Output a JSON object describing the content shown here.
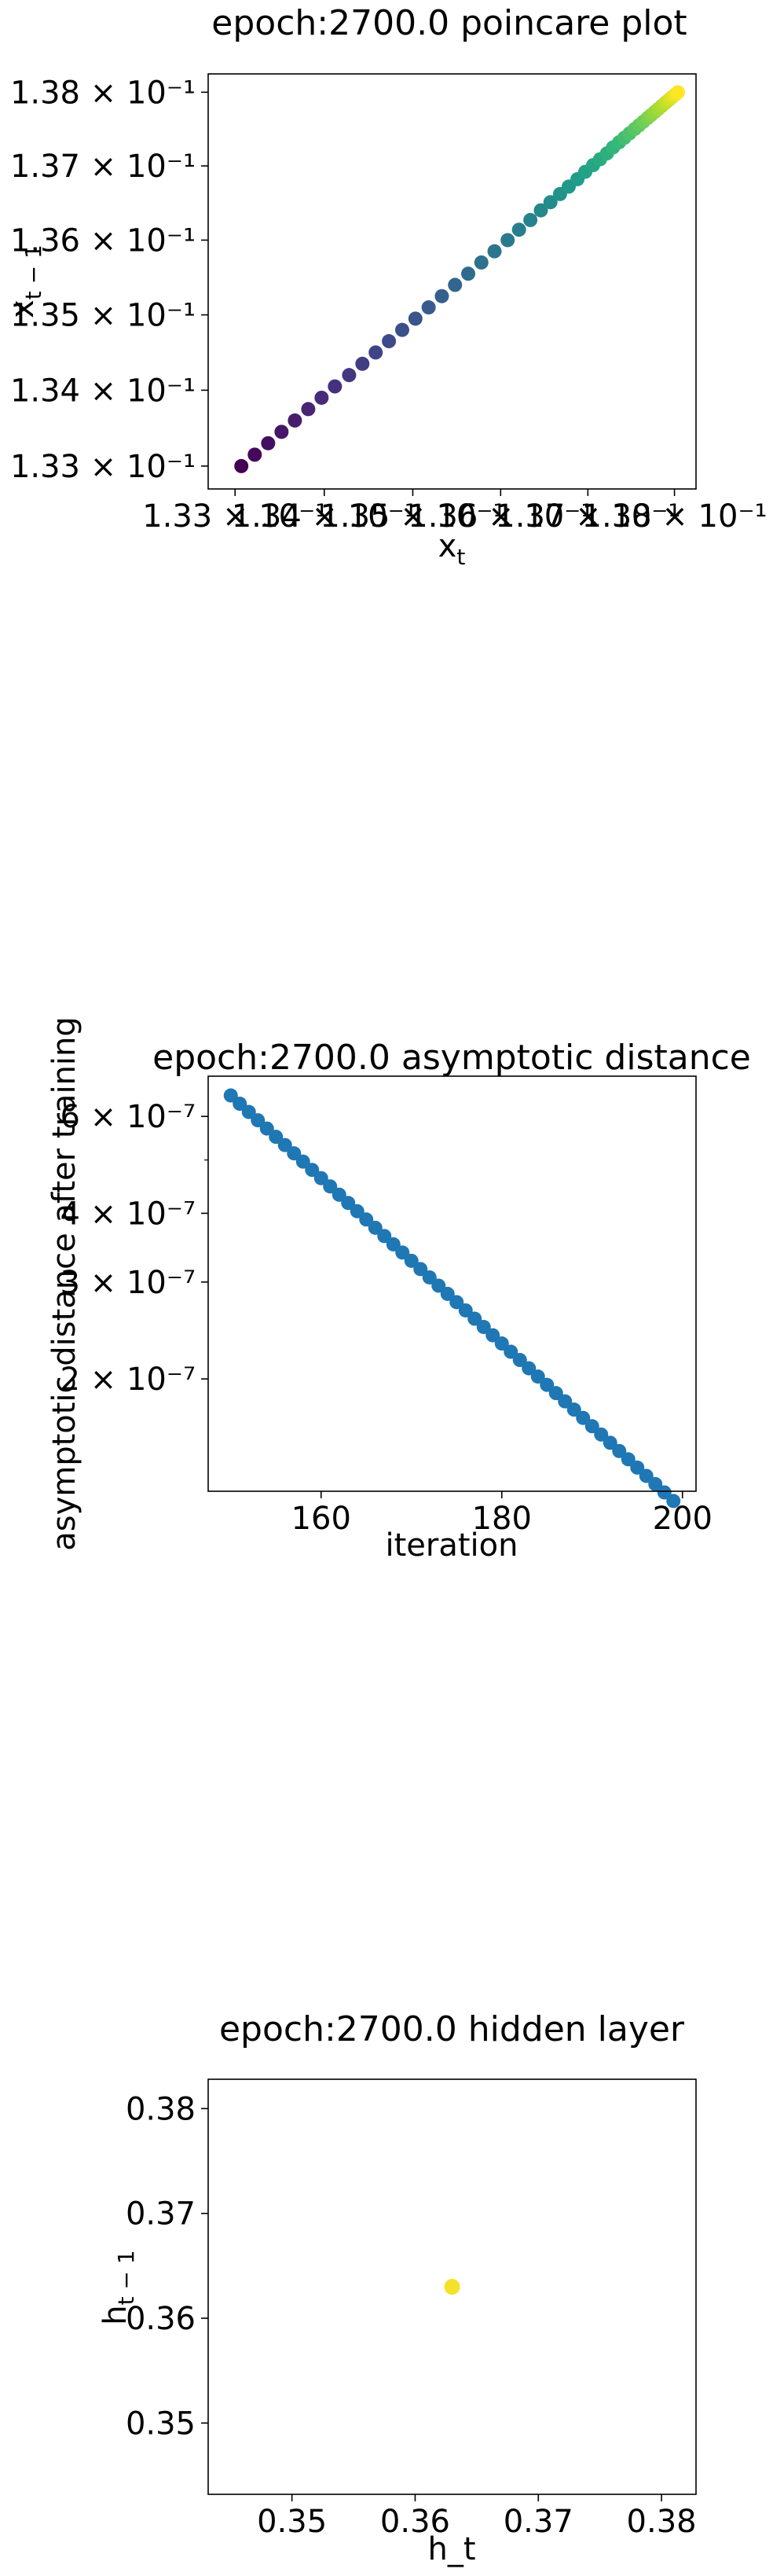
{
  "chart_data": [
    {
      "type": "scatter",
      "title": "epoch:2700.0 poincare plot",
      "xlabel_base": "x",
      "xlabel_sub": "t",
      "ylabel_base": "x",
      "ylabel_sub": "t − 1",
      "x_scale": "log",
      "y_scale": "log",
      "xlim": [
        0.1327,
        0.13825
      ],
      "ylim": [
        0.1327,
        0.13825
      ],
      "x_ticks": [
        0.133,
        0.134,
        0.135,
        0.136,
        0.137,
        0.138
      ],
      "x_tick_labels": [
        "1.33 × 10⁻¹",
        "1.34 × 10⁻¹",
        "1.35 × 10⁻¹",
        "1.36 × 10⁻¹",
        "1.37 × 10⁻¹",
        "1.38 × 10⁻¹"
      ],
      "y_ticks": [
        0.133,
        0.134,
        0.135,
        0.136,
        0.137,
        0.138
      ],
      "y_tick_labels": [
        "1.33 × 10⁻¹",
        "1.34 × 10⁻¹",
        "1.35 × 10⁻¹",
        "1.36 × 10⁻¹",
        "1.37 × 10⁻¹",
        "1.38 × 10⁻¹"
      ],
      "colormap": "viridis",
      "points": {
        "x": [
          0.13307,
          0.13322,
          0.13337,
          0.13352,
          0.13367,
          0.13382,
          0.13397,
          0.13412,
          0.13428,
          0.13443,
          0.13458,
          0.13473,
          0.13488,
          0.13503,
          0.13518,
          0.13533,
          0.13548,
          0.13563,
          0.13578,
          0.13593,
          0.13608,
          0.13621,
          0.13634,
          0.13646,
          0.13657,
          0.13668,
          0.13678,
          0.13688,
          0.13697,
          0.13706,
          0.13714,
          0.13722,
          0.13729,
          0.13736,
          0.13742,
          0.13748,
          0.13754,
          0.13759,
          0.13764,
          0.13769,
          0.13773,
          0.13777,
          0.13781,
          0.13785,
          0.13789,
          0.13792,
          0.13795,
          0.13798,
          0.13801,
          0.13804
        ],
        "y": [
          0.133,
          0.13315,
          0.1333,
          0.13345,
          0.1336,
          0.13375,
          0.1339,
          0.13405,
          0.1342,
          0.13435,
          0.1345,
          0.13465,
          0.1348,
          0.13495,
          0.1351,
          0.13525,
          0.1354,
          0.13555,
          0.1357,
          0.13585,
          0.136,
          0.13614,
          0.13627,
          0.1364,
          0.13651,
          0.13662,
          0.13672,
          0.13682,
          0.13692,
          0.13701,
          0.13709,
          0.13717,
          0.13725,
          0.13732,
          0.13738,
          0.13744,
          0.1375,
          0.13755,
          0.1376,
          0.13765,
          0.13769,
          0.13773,
          0.13777,
          0.13781,
          0.13785,
          0.13788,
          0.13791,
          0.13794,
          0.13797,
          0.138
        ]
      }
    },
    {
      "type": "scatter",
      "title": "epoch:2700.0 asymptotic distance",
      "xlabel": "iteration",
      "ylabel": "asymptotic distance after training",
      "y_scale": "log",
      "xlim": [
        147.5,
        201.5
      ],
      "ylim": [
        1.25e-07,
        7.1e-07
      ],
      "x_ticks": [
        160,
        180,
        200
      ],
      "x_tick_labels": [
        "160",
        "180",
        "200"
      ],
      "y_ticks": [
        2e-07,
        3e-07,
        4e-07,
        6e-07
      ],
      "y_tick_labels": [
        "2 × 10⁻⁷",
        "3 × 10⁻⁷",
        "4 × 10⁻⁷",
        "6 × 10⁻⁷"
      ],
      "color": "#1f77b4",
      "points": {
        "x": [
          150,
          151,
          152,
          153,
          154,
          155,
          156,
          157,
          158,
          159,
          160,
          161,
          162,
          163,
          164,
          165,
          166,
          167,
          168,
          169,
          170,
          171,
          172,
          173,
          174,
          175,
          176,
          177,
          178,
          179,
          180,
          181,
          182,
          183,
          184,
          185,
          186,
          187,
          188,
          189,
          190,
          191,
          192,
          193,
          194,
          195,
          196,
          197,
          198,
          199
        ],
        "y": [
          6.55e-07,
          6.327e-07,
          6.112e-07,
          5.904e-07,
          5.703e-07,
          5.509e-07,
          5.322e-07,
          5.141e-07,
          4.966e-07,
          4.797e-07,
          4.634e-07,
          4.476e-07,
          4.324e-07,
          4.177e-07,
          4.035e-07,
          3.898e-07,
          3.765e-07,
          3.637e-07,
          3.513e-07,
          3.394e-07,
          3.279e-07,
          3.167e-07,
          3.059e-07,
          2.955e-07,
          2.855e-07,
          2.758e-07,
          2.664e-07,
          2.573e-07,
          2.486e-07,
          2.401e-07,
          2.32e-07,
          2.241e-07,
          2.165e-07,
          2.091e-07,
          2.02e-07,
          1.951e-07,
          1.885e-07,
          1.821e-07,
          1.759e-07,
          1.699e-07,
          1.641e-07,
          1.585e-07,
          1.531e-07,
          1.479e-07,
          1.429e-07,
          1.38e-07,
          1.333e-07,
          1.288e-07,
          1.244e-07,
          1.2e-07
        ]
      }
    },
    {
      "type": "scatter",
      "title": "epoch:2700.0 hidden layer",
      "xlabel": "h_t",
      "ylabel_base": "h",
      "ylabel_sub": "t − 1",
      "xlim": [
        0.3432,
        0.3828
      ],
      "ylim": [
        0.3432,
        0.3828
      ],
      "x_ticks": [
        0.35,
        0.36,
        0.37,
        0.38
      ],
      "x_tick_labels": [
        "0.35",
        "0.36",
        "0.37",
        "0.38"
      ],
      "y_ticks": [
        0.35,
        0.36,
        0.37,
        0.38
      ],
      "y_tick_labels": [
        "0.35",
        "0.36",
        "0.37",
        "0.38"
      ],
      "color": "#f5e02a",
      "points": {
        "x": [
          0.363
        ],
        "y": [
          0.363
        ]
      }
    }
  ]
}
